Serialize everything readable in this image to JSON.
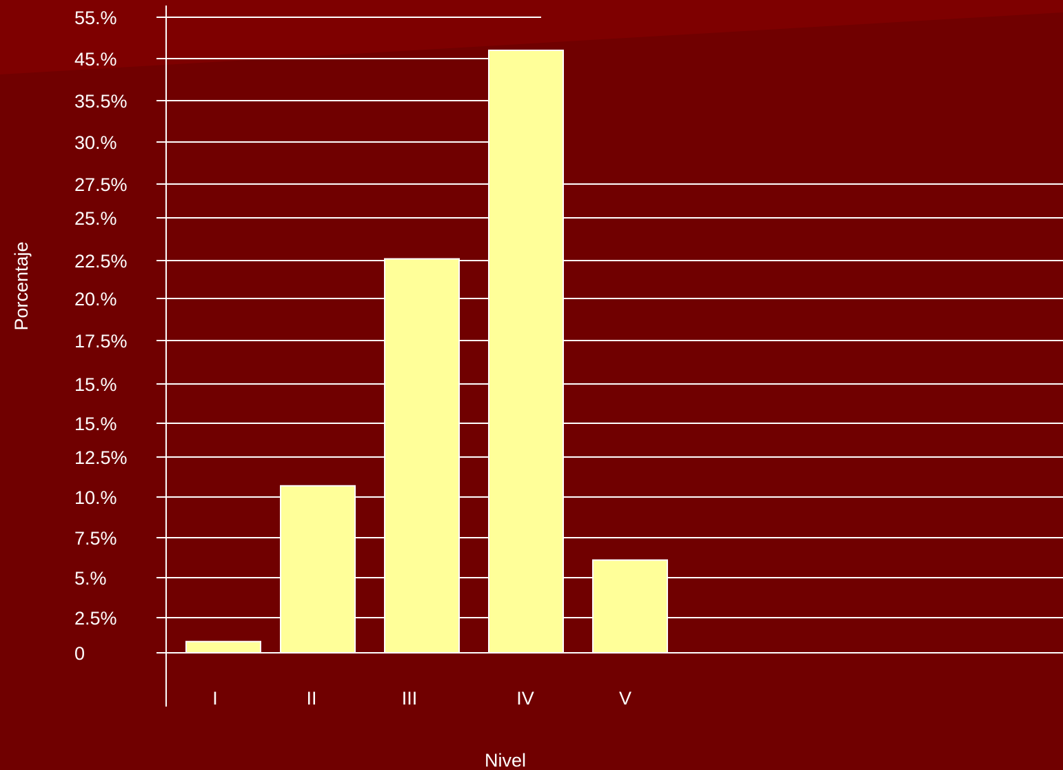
{
  "chart_data": {
    "type": "bar",
    "xlabel": "Nivel",
    "ylabel": "Porcentaje",
    "categories": [
      "I",
      "II",
      "III",
      "IV",
      "V"
    ],
    "values": [
      0.8,
      10.7,
      22.6,
      47.0,
      6.1
    ],
    "y_tick_labels": [
      "0",
      "2.5%",
      "5.%",
      "7.5%",
      "10.%",
      "12.5%",
      "15.%",
      "15.%",
      "17.5%",
      "20.%",
      "22.5%",
      "25.%",
      "27.5%",
      "30.%",
      "35.5%",
      "45.%",
      "55.%"
    ],
    "grid": true,
    "legend": "none"
  },
  "colors": {
    "background": "#700000",
    "background_highlight": "#8a0000",
    "bar_fill": "#ffff99",
    "bar_stroke": "#ffffff",
    "gridline": "#ffffff",
    "text": "#ffffff"
  }
}
